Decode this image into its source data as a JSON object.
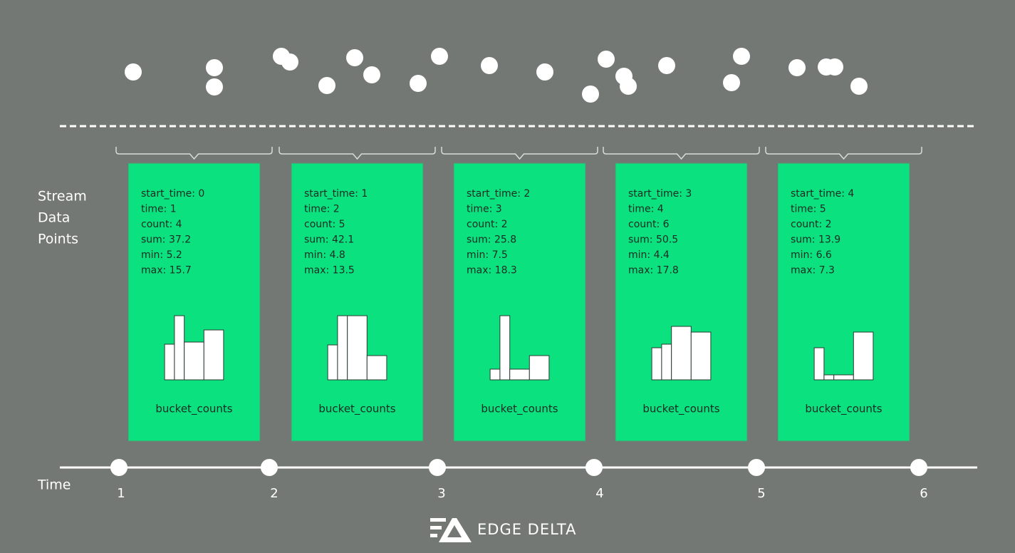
{
  "side_label": [
    "Stream",
    "Data",
    "Points"
  ],
  "time_label": "Time",
  "time_ticks": [
    1,
    2,
    3,
    4,
    5,
    6
  ],
  "cards": [
    {
      "lines": [
        "start_time: 0",
        "time: 1",
        "count: 4",
        "sum: 37.2",
        "min: 5.2",
        "max: 15.7"
      ],
      "buckets": {
        "edges": [
          0,
          1,
          2,
          4,
          6
        ],
        "counts": [
          5,
          9,
          5.3,
          7
        ]
      },
      "caption": "bucket_counts"
    },
    {
      "lines": [
        "start_time: 1",
        "time: 2",
        "count: 5",
        "sum: 42.1",
        "min: 4.8",
        "max: 13.5"
      ],
      "buckets": {
        "edges": [
          0,
          1,
          2,
          4,
          6
        ],
        "counts": [
          4.9,
          9,
          9,
          3.4
        ]
      },
      "caption": "bucket_counts"
    },
    {
      "lines": [
        "start_time: 2",
        "time: 3",
        "count: 2",
        "sum: 25.8",
        "min: 7.5",
        "max: 18.3"
      ],
      "buckets": {
        "edges": [
          0,
          1,
          2,
          4,
          6
        ],
        "counts": [
          1.5,
          9,
          1.5,
          3.4
        ]
      },
      "caption": "bucket_counts"
    },
    {
      "lines": [
        "start_time: 3",
        "time: 4",
        "count: 6",
        "sum: 50.5",
        "min: 4.4",
        "max: 17.8"
      ],
      "buckets": {
        "edges": [
          0,
          1,
          2,
          4,
          6
        ],
        "counts": [
          4.5,
          5,
          7.5,
          6.7
        ]
      },
      "caption": "bucket_counts"
    },
    {
      "lines": [
        "start_time: 4",
        "time: 5",
        "count: 2",
        "sum: 13.9",
        "min: 6.6",
        "max: 7.3"
      ],
      "buckets": {
        "edges": [
          0,
          1,
          2,
          4,
          6
        ],
        "counts": [
          4.5,
          0.7,
          0.7,
          6.7
        ]
      },
      "caption": "bucket_counts"
    }
  ],
  "logo": "EDGE DELTA"
}
